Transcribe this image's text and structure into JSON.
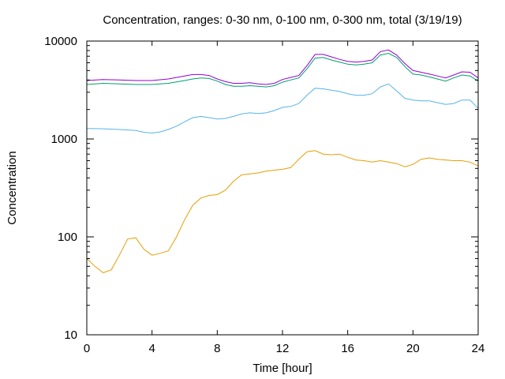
{
  "chart_data": {
    "type": "line",
    "title": "Concentration, ranges: 0-30 nm, 0-100 nm, 0-300 nm, total (3/19/19)",
    "xlabel": "Time [hour]",
    "ylabel": "Concentration",
    "xlim": [
      0,
      24
    ],
    "ylim": [
      10,
      10000
    ],
    "yscale": "log",
    "x_ticks": [
      "0",
      "4",
      "8",
      "12",
      "16",
      "20",
      "24"
    ],
    "y_ticks": [
      "10",
      "100",
      "1000",
      "10000"
    ],
    "grid": false,
    "legend": "none",
    "series": [
      {
        "color": "#e69f00",
        "x": [
          0,
          0.5,
          1,
          1.5,
          2,
          2.5,
          3,
          3.5,
          4,
          4.5,
          5,
          5.5,
          6,
          6.5,
          7,
          7.5,
          8,
          8.5,
          9,
          9.5,
          10,
          10.5,
          11,
          11.5,
          12,
          12.5,
          13,
          13.5,
          14,
          14.5,
          15,
          15.5,
          16,
          16.5,
          17,
          17.5,
          18,
          18.5,
          19,
          19.5,
          20,
          20.5,
          21,
          21.5,
          22,
          22.5,
          23,
          23.5,
          24
        ],
        "values": [
          60,
          50,
          43,
          46,
          65,
          95,
          98,
          75,
          65,
          68,
          72,
          100,
          150,
          210,
          250,
          265,
          270,
          300,
          370,
          430,
          440,
          450,
          470,
          480,
          490,
          510,
          620,
          740,
          760,
          700,
          690,
          700,
          650,
          610,
          600,
          580,
          600,
          580,
          560,
          520,
          550,
          620,
          640,
          620,
          610,
          600,
          600,
          580,
          530
        ]
      },
      {
        "color": "#56b4e9",
        "x": [
          0,
          1,
          2,
          3,
          3.5,
          4,
          4.5,
          5,
          5.5,
          6,
          6.5,
          7,
          7.5,
          8,
          8.5,
          9,
          9.5,
          10,
          10.5,
          11,
          11.5,
          12,
          12.5,
          13,
          13.5,
          14,
          14.5,
          15,
          15.5,
          16,
          16.5,
          17,
          17.5,
          18,
          18.5,
          19,
          19.5,
          20,
          20.5,
          21,
          21.5,
          22,
          22.5,
          23,
          23.5,
          24
        ],
        "values": [
          1280,
          1270,
          1250,
          1220,
          1170,
          1150,
          1180,
          1250,
          1350,
          1500,
          1650,
          1700,
          1650,
          1600,
          1620,
          1700,
          1800,
          1850,
          1820,
          1850,
          1950,
          2100,
          2150,
          2300,
          2800,
          3300,
          3250,
          3150,
          3050,
          2900,
          2800,
          2800,
          2900,
          3400,
          3650,
          3100,
          2600,
          2500,
          2450,
          2450,
          2350,
          2250,
          2300,
          2500,
          2500,
          2050
        ]
      },
      {
        "color": "#009e73",
        "x": [
          0,
          1,
          2,
          3,
          4,
          5,
          6,
          6.5,
          7,
          7.5,
          8,
          8.5,
          9,
          9.5,
          10,
          10.5,
          11,
          11.5,
          12,
          12.5,
          13,
          13.5,
          14,
          14.5,
          15,
          15.5,
          16,
          16.5,
          17,
          17.5,
          18,
          18.5,
          19,
          19.5,
          20,
          20.5,
          21,
          21.5,
          22,
          22.5,
          23,
          23.5,
          24
        ],
        "values": [
          3600,
          3700,
          3650,
          3600,
          3600,
          3700,
          3950,
          4100,
          4200,
          4150,
          3900,
          3600,
          3450,
          3450,
          3500,
          3450,
          3400,
          3500,
          3800,
          4000,
          4200,
          5200,
          6700,
          6800,
          6400,
          6100,
          5800,
          5700,
          5800,
          6000,
          7200,
          7500,
          6800,
          5500,
          4600,
          4500,
          4300,
          4100,
          3900,
          4200,
          4500,
          4400,
          3900
        ]
      },
      {
        "color": "#9400d3",
        "x": [
          0,
          1,
          2,
          3,
          4,
          5,
          6,
          6.5,
          7,
          7.5,
          8,
          8.5,
          9,
          9.5,
          10,
          10.5,
          11,
          11.5,
          12,
          12.5,
          13,
          13.5,
          14,
          14.5,
          15,
          15.5,
          16,
          16.5,
          17,
          17.5,
          18,
          18.5,
          19,
          19.5,
          20,
          20.5,
          21,
          21.5,
          22,
          22.5,
          23,
          23.5,
          24
        ],
        "values": [
          3950,
          4050,
          4000,
          3950,
          3950,
          4100,
          4400,
          4550,
          4550,
          4450,
          4100,
          3850,
          3700,
          3700,
          3750,
          3650,
          3600,
          3700,
          4050,
          4250,
          4450,
          5600,
          7300,
          7300,
          6900,
          6500,
          6200,
          6100,
          6200,
          6400,
          7800,
          8100,
          7200,
          5900,
          5000,
          4800,
          4600,
          4400,
          4200,
          4500,
          4850,
          4800,
          4200
        ]
      }
    ]
  }
}
